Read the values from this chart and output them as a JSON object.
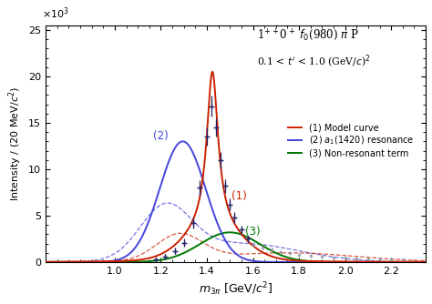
{
  "title_line1": "1$^{++}$0$^+$ $f_0$(980) $\\pi$ P",
  "title_line2": "0.1 < $t^{\\prime}$ < 1.0 (GeV/$c$)$^2$",
  "xlabel": "$m_{3\\pi}$ [GeV/$c^2$]",
  "ylabel": "Intensity / (20 MeV/$c^2$)",
  "xlim": [
    0.7,
    2.35
  ],
  "ylim": [
    0,
    25500
  ],
  "yticks": [
    0,
    5000,
    10000,
    15000,
    20000,
    25000
  ],
  "ytick_labels": [
    "0",
    "5",
    "10",
    "15",
    "20",
    "25"
  ],
  "xticks": [
    1.0,
    1.2,
    1.4,
    1.6,
    1.8,
    2.0,
    2.2
  ],
  "legend_labels": [
    "(1) Model curve",
    "(2) $a_1$(1420) resonance",
    "(3) Non-resonant term"
  ],
  "legend_colors": [
    "#cc2200",
    "#4444dd",
    "#007700"
  ],
  "model_color": "#cc2200",
  "resonance_color": "#4444dd",
  "nonres_color": "#007700",
  "data_color": "#555555",
  "scatter_color": "#9999aa"
}
